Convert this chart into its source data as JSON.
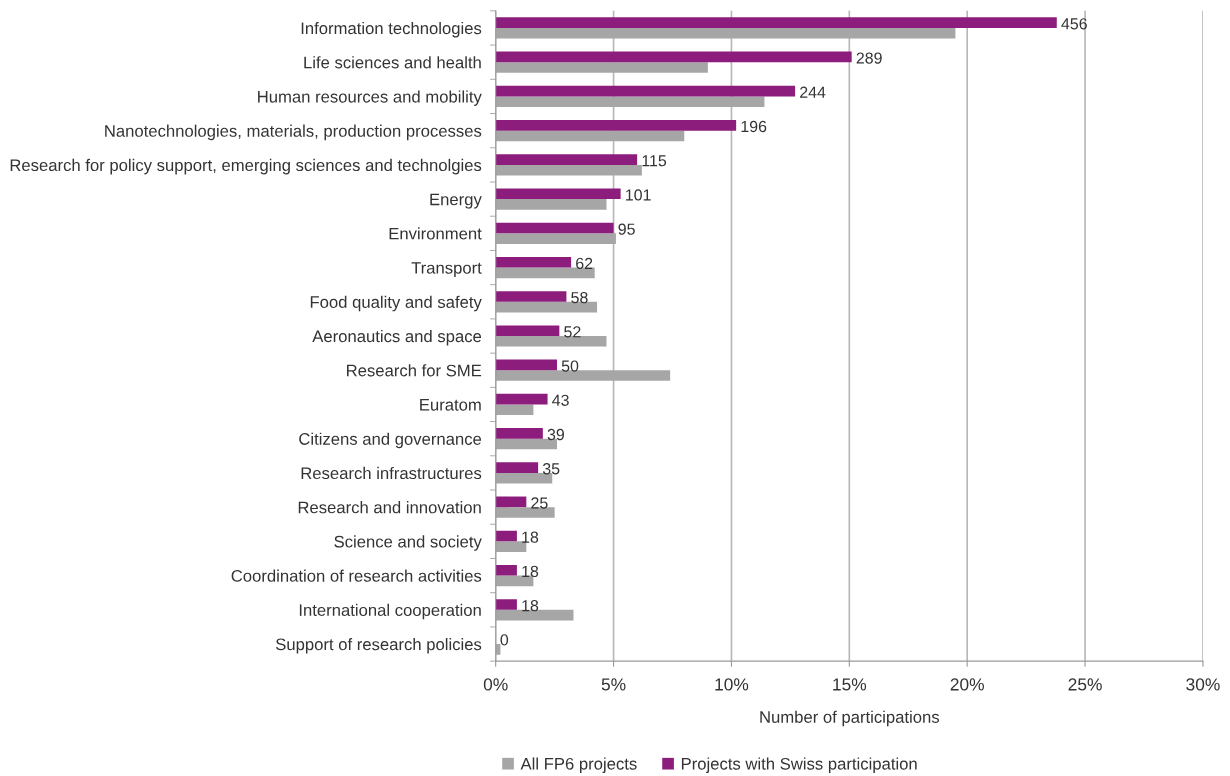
{
  "chart_data": {
    "type": "bar",
    "orientation": "horizontal",
    "xlabel": "Number of participations",
    "categories": [
      "Information technologies",
      "Life sciences and health",
      "Human resources and mobility",
      "Nanotechnologies, materials, production processes",
      "Research for policy support, emerging sciences and technolgies",
      "Energy",
      "Environment",
      "Transport",
      "Food quality and safety",
      "Aeronautics and space",
      "Research for SME",
      "Euratom",
      "Citizens and governance",
      "Research infrastructures",
      "Research and innovation",
      "Science and society",
      "Coordination of research activities",
      "International cooperation",
      "Support of research policies"
    ],
    "series": [
      {
        "name": "All FP6 projects",
        "color": "#a6a6a6",
        "values": [
          19.5,
          9.0,
          11.4,
          8.0,
          6.2,
          4.7,
          5.1,
          4.2,
          4.3,
          4.7,
          7.4,
          1.6,
          2.6,
          2.4,
          2.5,
          1.3,
          1.6,
          3.3,
          0.2
        ]
      },
      {
        "name": "Projects with Swiss participation",
        "color": "#8c1d7c",
        "values": [
          23.8,
          15.1,
          12.7,
          10.2,
          6.0,
          5.3,
          5.0,
          3.2,
          3.0,
          2.7,
          2.6,
          2.2,
          2.0,
          1.8,
          1.3,
          0.9,
          0.9,
          0.9,
          0
        ]
      }
    ],
    "annotations": [
      {
        "text": "456",
        "x": 23.8,
        "y": "Information technologies"
      },
      {
        "text": "289",
        "x": 15.1,
        "y": "Life sciences and health"
      },
      {
        "text": "244",
        "x": 12.7,
        "y": "Human resources and mobility"
      },
      {
        "text": "196",
        "x": 10.2,
        "y": "Nanotechnologies, materials, production processes"
      },
      {
        "text": "115",
        "x": 6.0,
        "y": "Research for policy support, emerging sciences and technolgies"
      },
      {
        "text": "101",
        "x": 5.3,
        "y": "Energy"
      },
      {
        "text": "95",
        "x": 5.0,
        "y": "Environment"
      },
      {
        "text": "62",
        "x": 3.2,
        "y": "Transport"
      },
      {
        "text": "58",
        "x": 3.0,
        "y": "Food quality and safety"
      },
      {
        "text": "52",
        "x": 2.7,
        "y": "Aeronautics and space"
      },
      {
        "text": "50",
        "x": 2.6,
        "y": "Research for SME"
      },
      {
        "text": "43",
        "x": 2.2,
        "y": "Euratom"
      },
      {
        "text": "39",
        "x": 2.0,
        "y": "Citizens and governance"
      },
      {
        "text": "35",
        "x": 1.8,
        "y": "Research infrastructures"
      },
      {
        "text": "25",
        "x": 1.3,
        "y": "Research and innovation"
      },
      {
        "text": "18",
        "x": 0.9,
        "y": "Science and society"
      },
      {
        "text": "18",
        "x": 0.9,
        "y": "Coordination of research activities"
      },
      {
        "text": "18",
        "x": 0.9,
        "y": "International cooperation"
      },
      {
        "text": "0",
        "x": 0,
        "y": "Support of research policies"
      }
    ],
    "xlim": [
      0,
      30
    ],
    "xticks": [
      {
        "value": 0,
        "label": "0%"
      },
      {
        "value": 5,
        "label": "5%"
      },
      {
        "value": 10,
        "label": "10%"
      },
      {
        "value": 15,
        "label": "15%"
      },
      {
        "value": 20,
        "label": "20%"
      },
      {
        "value": 25,
        "label": "25%"
      },
      {
        "value": 30,
        "label": "30%"
      }
    ],
    "grid": "x",
    "legend": "bottom"
  }
}
